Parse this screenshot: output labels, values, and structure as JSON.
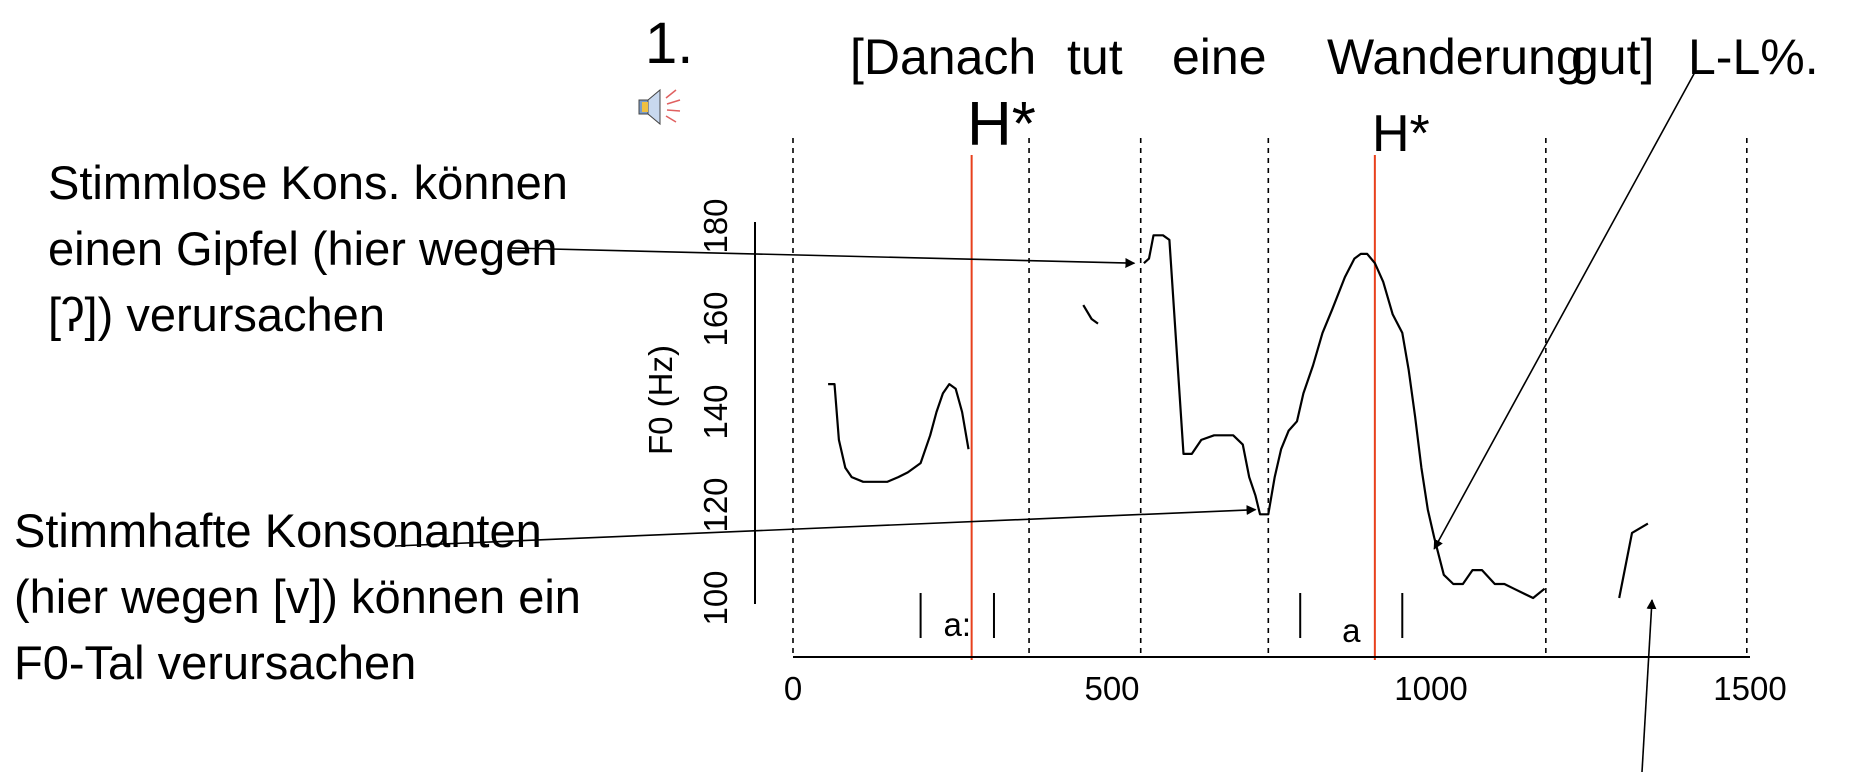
{
  "slide": {
    "number": "1.",
    "sentence_words": [
      "[Danach",
      "tut",
      "eine",
      "Wanderung",
      "gut]",
      "L-L%."
    ],
    "accents": [
      "H*",
      "H*"
    ],
    "speaker_icon": "speaker-icon",
    "note_voiceless": "Stimmlose Kons. können einen Gipfel (hier wegen [ʔ]) verursachen",
    "note_voiced": "Stimmhafte Konsonanten (hier wegen [v]) können ein F0-Tal verursachen"
  },
  "colors": {
    "accent_line": "#e8401c",
    "curve": "#000000"
  },
  "chart_data": {
    "type": "line",
    "ylabel": "F0 (Hz)",
    "xlabel": "",
    "xlim": [
      0,
      1500
    ],
    "ylim": [
      93,
      183
    ],
    "xticks": [
      0,
      500,
      1000,
      1500
    ],
    "yticks": [
      100,
      120,
      140,
      160,
      180
    ],
    "grid": false,
    "segment_boundaries_ms": [
      0,
      370,
      545,
      745,
      1180,
      1495
    ],
    "accent_times_ms": [
      280,
      912
    ],
    "vowel_labels": [
      {
        "label": "a:",
        "start": 200,
        "end": 315
      },
      {
        "label": "a",
        "start": 795,
        "end": 955
      }
    ],
    "series": [
      {
        "values": [
          [
            55,
            146
          ],
          [
            65,
            146
          ],
          [
            72,
            134
          ],
          [
            82,
            128
          ],
          [
            92,
            126
          ],
          [
            110,
            125
          ],
          [
            130,
            125
          ],
          [
            148,
            125
          ],
          [
            165,
            126
          ],
          [
            180,
            127
          ],
          [
            200,
            129
          ],
          [
            215,
            135
          ],
          [
            225,
            140
          ],
          [
            235,
            144
          ],
          [
            245,
            146
          ],
          [
            255,
            145
          ],
          [
            265,
            140
          ],
          [
            275,
            132
          ]
        ]
      },
      {
        "values": [
          [
            455,
            163
          ],
          [
            468,
            160
          ],
          [
            478,
            159
          ]
        ]
      },
      {
        "values": [
          [
            550,
            172
          ],
          [
            558,
            173
          ],
          [
            565,
            178
          ],
          [
            580,
            178
          ],
          [
            590,
            177
          ],
          [
            612,
            131
          ],
          [
            625,
            131
          ],
          [
            640,
            134
          ],
          [
            660,
            135
          ],
          [
            690,
            135
          ],
          [
            705,
            133
          ],
          [
            715,
            126
          ],
          [
            725,
            122
          ],
          [
            732,
            118
          ],
          [
            745,
            118
          ],
          [
            755,
            126
          ],
          [
            765,
            132
          ],
          [
            777,
            136
          ],
          [
            790,
            138
          ],
          [
            800,
            144
          ],
          [
            815,
            150
          ],
          [
            830,
            157
          ],
          [
            845,
            162
          ],
          [
            865,
            169
          ],
          [
            880,
            173
          ],
          [
            890,
            174
          ],
          [
            900,
            174
          ],
          [
            912,
            172
          ],
          [
            925,
            168
          ],
          [
            940,
            161
          ],
          [
            955,
            157
          ],
          [
            965,
            149
          ],
          [
            975,
            139
          ],
          [
            985,
            128
          ],
          [
            995,
            119
          ],
          [
            1005,
            113
          ],
          [
            1020,
            105
          ],
          [
            1035,
            103
          ],
          [
            1050,
            103
          ],
          [
            1065,
            106
          ],
          [
            1080,
            106
          ],
          [
            1100,
            103
          ],
          [
            1115,
            103
          ],
          [
            1130,
            102
          ],
          [
            1145,
            101
          ],
          [
            1160,
            100
          ],
          [
            1178,
            102
          ]
        ]
      },
      {
        "values": [
          [
            1295,
            100
          ],
          [
            1315,
            114
          ],
          [
            1340,
            116
          ]
        ]
      }
    ],
    "annotations": [
      {
        "label": "note_voiceless",
        "target": [
          535,
          172
        ]
      },
      {
        "label": "note_voiced",
        "target": [
          725,
          119
        ]
      },
      {
        "label": "L-L%",
        "target": [
          1005,
          114
        ]
      }
    ]
  }
}
